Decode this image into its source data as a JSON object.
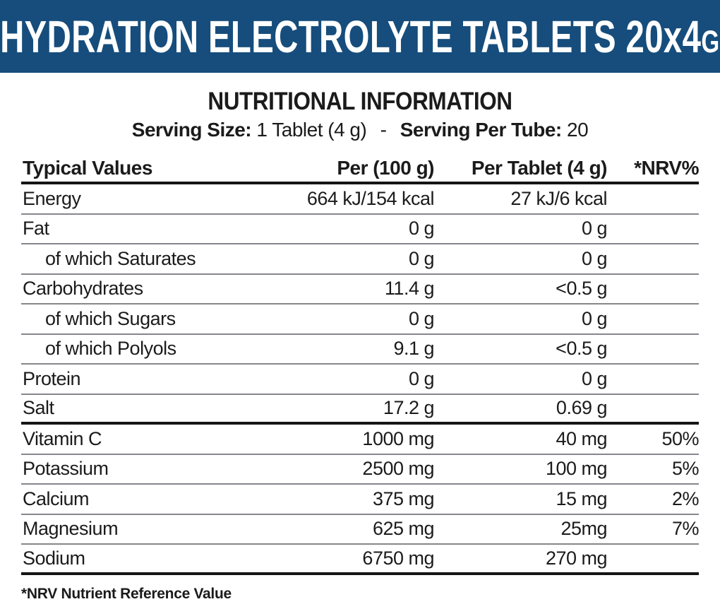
{
  "banner": {
    "title_main": "HYDRATION ELECTROLYTE TABLETS 20x4",
    "title_suffix": "G"
  },
  "section": {
    "title": "NUTRITIONAL INFORMATION"
  },
  "serving": {
    "size_label": "Serving Size:",
    "size_value": "1 Tablet (4 g)",
    "separator": "-",
    "per_tube_label": "Serving Per Tube:",
    "per_tube_value": "20"
  },
  "table": {
    "headers": [
      "Typical Values",
      "Per (100 g)",
      "Per Tablet (4 g)",
      "*NRV%"
    ],
    "rows": [
      {
        "label": "Energy",
        "indent": false,
        "per_100g": "664 kJ/154 kcal",
        "per_tablet": "27 kJ/6 kcal",
        "nrv": "",
        "divider": "thin"
      },
      {
        "label": "Fat",
        "indent": false,
        "per_100g": "0 g",
        "per_tablet": "0 g",
        "nrv": "",
        "divider": "thin"
      },
      {
        "label": "of which Saturates",
        "indent": true,
        "per_100g": "0 g",
        "per_tablet": "0 g",
        "nrv": "",
        "divider": "thin"
      },
      {
        "label": "Carbohydrates",
        "indent": false,
        "per_100g": "11.4 g",
        "per_tablet": "<0.5 g",
        "nrv": "",
        "divider": "thin"
      },
      {
        "label": "of which Sugars",
        "indent": true,
        "per_100g": "0 g",
        "per_tablet": "0 g",
        "nrv": "",
        "divider": "thin"
      },
      {
        "label": "of which Polyols",
        "indent": true,
        "per_100g": "9.1 g",
        "per_tablet": "<0.5 g",
        "nrv": "",
        "divider": "thin"
      },
      {
        "label": "Protein",
        "indent": false,
        "per_100g": "0 g",
        "per_tablet": "0 g",
        "nrv": "",
        "divider": "thin"
      },
      {
        "label": "Salt",
        "indent": false,
        "per_100g": "17.2 g",
        "per_tablet": "0.69 g",
        "nrv": "",
        "divider": "thick"
      },
      {
        "label": "Vitamin C",
        "indent": false,
        "per_100g": "1000 mg",
        "per_tablet": "40 mg",
        "nrv": "50%",
        "divider": "thin"
      },
      {
        "label": "Potassium",
        "indent": false,
        "per_100g": "2500 mg",
        "per_tablet": "100 mg",
        "nrv": "5%",
        "divider": "thin"
      },
      {
        "label": "Calcium",
        "indent": false,
        "per_100g": "375 mg",
        "per_tablet": "15 mg",
        "nrv": "2%",
        "divider": "thin"
      },
      {
        "label": "Magnesium",
        "indent": false,
        "per_100g": "625 mg",
        "per_tablet": "25mg",
        "nrv": "7%",
        "divider": "thin"
      },
      {
        "label": "Sodium",
        "indent": false,
        "per_100g": "6750 mg",
        "per_tablet": "270 mg",
        "nrv": "",
        "divider": "thick"
      }
    ]
  },
  "footnote": "*NRV Nutrient Reference Value",
  "colors": {
    "banner_bg": "#164D7C",
    "banner_text": "#FFFFFF",
    "body_text": "#1B1B1B",
    "thin_divider": "#86868C",
    "thick_divider": "#151515"
  }
}
